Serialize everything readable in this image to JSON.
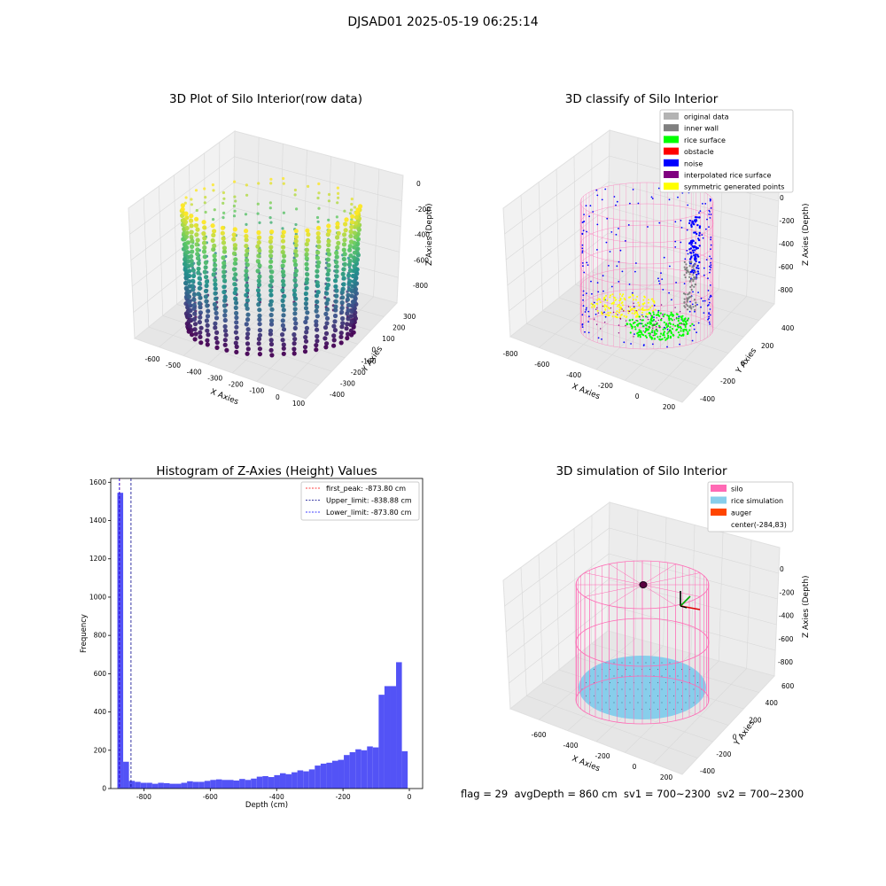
{
  "suptitle": "DJSAD01 2025-05-19 06:25:14",
  "status_line": "flag = 29  avgDepth = 860 cm  sv1 = 700~2300  sv2 = 700~2300",
  "colors": {
    "original_data": "#b3b3b3",
    "inner_wall": "#808080",
    "rice_surface": "#00ff00",
    "obstacle": "#ff0000",
    "noise": "#0000ff",
    "interpolated_rice_surface": "#800080",
    "symmetric_generated_points": "#ffff00",
    "silo": "#ff69b4",
    "rice_simulation": "#87ceeb",
    "auger": "#ff4500",
    "histogram": "#4a4af5"
  },
  "chart_data": [
    {
      "type": "scatter",
      "title": "3D Plot of Silo Interior(row data)",
      "xlabel": "X Axies",
      "ylabel": "Y Axies",
      "zlabel": "Z Axies (Depth)",
      "xticks": [
        "-600",
        "-500",
        "-400",
        "-300",
        "-200",
        "-100",
        "0",
        "100"
      ],
      "yticks": [
        "300",
        "200",
        "100",
        "0",
        "-100",
        "-200",
        "-300",
        "-400"
      ],
      "zticks": [
        "0",
        "-200",
        "-400",
        "-600",
        "-800"
      ],
      "xlim": [
        -650,
        100
      ],
      "ylim": [
        -400,
        300
      ],
      "zlim": [
        -900,
        0
      ],
      "colormap": "viridis",
      "description_points": "cylindrical point cloud of silo wall colored by depth"
    },
    {
      "type": "scatter",
      "title": "3D classify of Silo Interior",
      "xlabel": "X Axies",
      "ylabel": "Y Axies",
      "zlabel": "Z Axies (Depth)",
      "xticks": [
        "-800",
        "-600",
        "-400",
        "-200",
        "0",
        "200"
      ],
      "yticks": [
        "400",
        "200",
        "0",
        "-200",
        "-400"
      ],
      "zticks": [
        "0",
        "-200",
        "-400",
        "-600",
        "-800"
      ],
      "legend": [
        "original data",
        "inner wall",
        "rice surface",
        "obstacle",
        "noise",
        "interpolated rice surface",
        "symmetric generated points"
      ],
      "legend_position": "top-right"
    },
    {
      "type": "bar",
      "title": "Histogram of Z-Axies (Height) Values",
      "xlabel": "Depth (cm)",
      "ylabel": "Frequency",
      "xlim": [
        -900,
        40
      ],
      "ylim": [
        0,
        1620
      ],
      "xticks": [
        -800,
        -600,
        -400,
        -200,
        0
      ],
      "yticks": [
        0,
        200,
        400,
        600,
        800,
        1000,
        1200,
        1400,
        1600
      ],
      "bin_width": 17.5,
      "bin_start": -880,
      "values": [
        1545,
        140,
        40,
        35,
        30,
        30,
        25,
        30,
        28,
        25,
        25,
        30,
        38,
        35,
        35,
        40,
        45,
        48,
        45,
        45,
        42,
        50,
        45,
        52,
        62,
        65,
        60,
        70,
        80,
        75,
        85,
        95,
        90,
        100,
        120,
        130,
        135,
        145,
        150,
        175,
        190,
        205,
        200,
        220,
        215,
        490,
        535,
        535,
        660,
        195
      ],
      "vlines": [
        {
          "label": "first_peak: -873.80 cm",
          "x": -873.8,
          "color": "#ff0000"
        },
        {
          "label": "Upper_limit: -838.88 cm",
          "x": -838.88,
          "color": "#00008b"
        },
        {
          "label": "Lower_limit: -873.80 cm",
          "x": -873.8,
          "color": "#0000ff"
        }
      ],
      "legend_position": "top-right"
    },
    {
      "type": "scatter",
      "title": "3D simulation of Silo Interior",
      "xlabel": "X Axies",
      "ylabel": "Y Axies",
      "zlabel": "Z Axies (Depth)",
      "xticks": [
        "-600",
        "-400",
        "-200",
        "0",
        "200"
      ],
      "yticks": [
        "600",
        "400",
        "200",
        "0",
        "-200",
        "-400"
      ],
      "zticks": [
        "0",
        "-200",
        "-400",
        "-600",
        "-800"
      ],
      "legend": [
        "silo",
        "rice simulation",
        "auger",
        "center(-284,83)"
      ],
      "legend_position": "top-right"
    }
  ]
}
